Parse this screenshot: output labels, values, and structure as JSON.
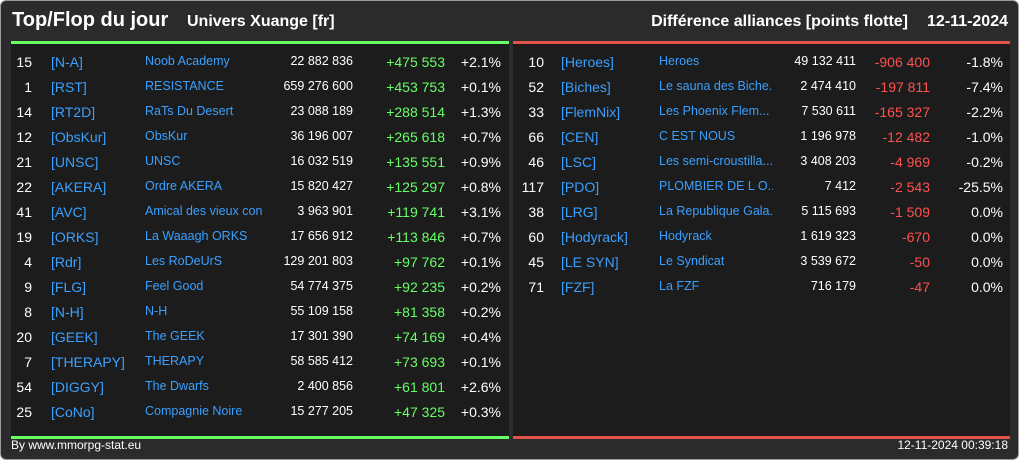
{
  "header": {
    "title": "Top/Flop du jour",
    "universe": "Univers Xuange [fr]",
    "right_title": "Différence alliances [points flotte]",
    "date": "12-11-2024"
  },
  "top": [
    {
      "rank": "15",
      "tag": "[N-A]",
      "name": "Noob Academy",
      "points": "22 882 836",
      "diff": "+475 553",
      "pct": "+2.1%"
    },
    {
      "rank": "1",
      "tag": "[RST]",
      "name": "RESISTANCE",
      "points": "659 276 600",
      "diff": "+453 753",
      "pct": "+0.1%"
    },
    {
      "rank": "14",
      "tag": "[RT2D]",
      "name": "RaTs Du Desert",
      "points": "23 088 189",
      "diff": "+288 514",
      "pct": "+1.3%"
    },
    {
      "rank": "12",
      "tag": "[ObsKur]",
      "name": "ObsKur",
      "points": "36 196 007",
      "diff": "+265 618",
      "pct": "+0.7%"
    },
    {
      "rank": "21",
      "tag": "[UNSC]",
      "name": "UNSC",
      "points": "16 032 519",
      "diff": "+135 551",
      "pct": "+0.9%"
    },
    {
      "rank": "22",
      "tag": "[AKERA]",
      "name": "Ordre AKERA",
      "points": "15 820 427",
      "diff": "+125 297",
      "pct": "+0.8%"
    },
    {
      "rank": "41",
      "tag": "[AVC]",
      "name": "Amical des vieux con",
      "points": "3 963 901",
      "diff": "+119 741",
      "pct": "+3.1%"
    },
    {
      "rank": "19",
      "tag": "[ORKS]",
      "name": "La Waaagh ORKS",
      "points": "17 656 912",
      "diff": "+113 846",
      "pct": "+0.7%"
    },
    {
      "rank": "4",
      "tag": "[Rdr]",
      "name": "Les RoDeUrS",
      "points": "129 201 803",
      "diff": "+97 762",
      "pct": "+0.1%"
    },
    {
      "rank": "9",
      "tag": "[FLG]",
      "name": "Feel Good",
      "points": "54 774 375",
      "diff": "+92 235",
      "pct": "+0.2%"
    },
    {
      "rank": "8",
      "tag": "[N-H]",
      "name": "N-H",
      "points": "55 109 158",
      "diff": "+81 358",
      "pct": "+0.2%"
    },
    {
      "rank": "20",
      "tag": "[GEEK]",
      "name": "The GEEK",
      "points": "17 301 390",
      "diff": "+74 169",
      "pct": "+0.4%"
    },
    {
      "rank": "7",
      "tag": "[THERAPY]",
      "name": "THERAPY",
      "points": "58 585 412",
      "diff": "+73 693",
      "pct": "+0.1%"
    },
    {
      "rank": "54",
      "tag": "[DIGGY]",
      "name": "The Dwarfs",
      "points": "2 400 856",
      "diff": "+61 801",
      "pct": "+2.6%"
    },
    {
      "rank": "25",
      "tag": "[CoNo]",
      "name": "Compagnie Noire",
      "points": "15 277 205",
      "diff": "+47 325",
      "pct": "+0.3%"
    }
  ],
  "flop": [
    {
      "rank": "10",
      "tag": "[Heroes]",
      "name": "Heroes",
      "points": "49 132 411",
      "diff": "-906 400",
      "pct": "-1.8%"
    },
    {
      "rank": "52",
      "tag": "[Biches]",
      "name": "Le sauna des Biche...",
      "points": "2 474 410",
      "diff": "-197 811",
      "pct": "-7.4%"
    },
    {
      "rank": "33",
      "tag": "[FlemNix]",
      "name": "Les Phoenix Flem...",
      "points": "7 530 611",
      "diff": "-165 327",
      "pct": "-2.2%"
    },
    {
      "rank": "66",
      "tag": "[CEN]",
      "name": "C EST NOUS",
      "points": "1 196 978",
      "diff": "-12 482",
      "pct": "-1.0%"
    },
    {
      "rank": "46",
      "tag": "[LSC]",
      "name": "Les semi-croustilla...",
      "points": "3 408 203",
      "diff": "-4 969",
      "pct": "-0.2%"
    },
    {
      "rank": "117",
      "tag": "[PDO]",
      "name": "PLOMBIER DE L O...",
      "points": "7 412",
      "diff": "-2 543",
      "pct": "-25.5%"
    },
    {
      "rank": "38",
      "tag": "[LRG]",
      "name": "La Republique Gala...",
      "points": "5 115 693",
      "diff": "-1 509",
      "pct": "0.0%"
    },
    {
      "rank": "60",
      "tag": "[Hodyrack]",
      "name": "Hodyrack",
      "points": "1 619 323",
      "diff": "-670",
      "pct": "0.0%"
    },
    {
      "rank": "45",
      "tag": "[LE SYN]",
      "name": "Le Syndicat",
      "points": "3 539 672",
      "diff": "-50",
      "pct": "0.0%"
    },
    {
      "rank": "71",
      "tag": "[FZF]",
      "name": "La FZF",
      "points": "716 179",
      "diff": "-47",
      "pct": "0.0%"
    }
  ],
  "footer": {
    "source": "By www.mmorpg-stat.eu",
    "timestamp": "12-11-2024 00:39:18"
  }
}
